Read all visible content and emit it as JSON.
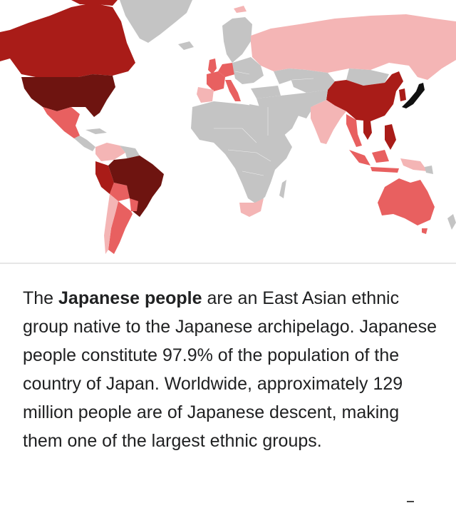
{
  "map": {
    "description_icon": "world-map-japanese-diaspora",
    "colors": {
      "ocean": "#ffffff",
      "no_data": "#c4c4c4",
      "japan": "#111111",
      "highest": "#6e1410",
      "high": "#a91c18",
      "medium": "#e86060",
      "low": "#f4b5b5"
    }
  },
  "article": {
    "intro_before": "The ",
    "subject": "Japanese people",
    "intro_after": " are an East Asian ethnic group native to the Japanese archipelago. Japanese people constitute 97.9% of the population of the country of Japan. Worldwide, approximately 129 million people are of Japanese descent, making them one of the largest ethnic groups."
  }
}
